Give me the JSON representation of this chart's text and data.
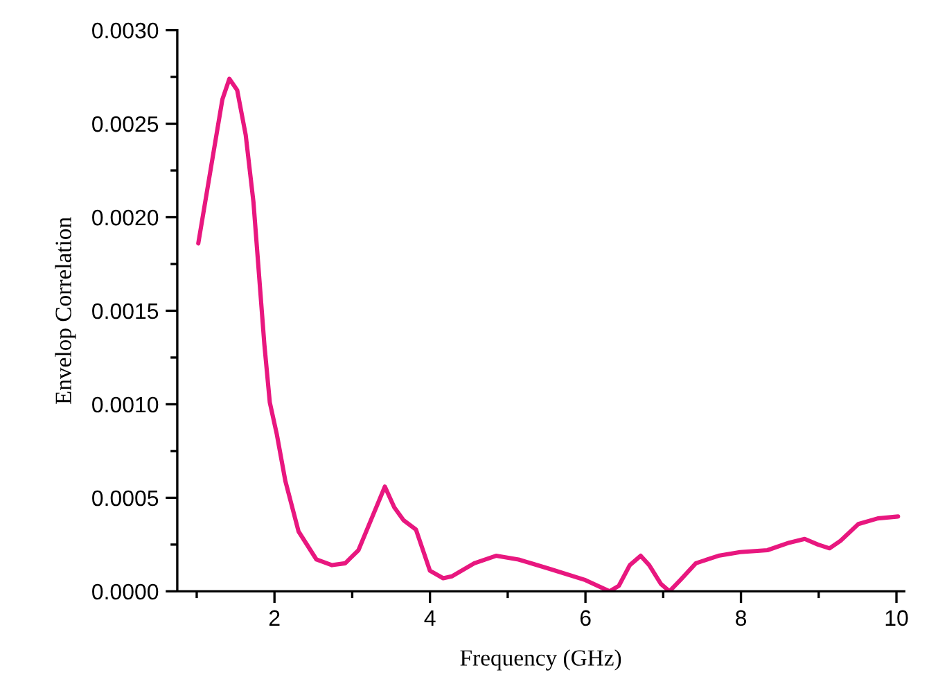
{
  "chart_data": {
    "type": "line",
    "xlabel": "Frequency (GHz)",
    "ylabel": "Envelop Correlation",
    "xlim": [
      0.75,
      10.1
    ],
    "ylim": [
      0,
      0.003
    ],
    "xticks": [
      2,
      4,
      6,
      8,
      10
    ],
    "yticks": [
      {
        "value": 0,
        "label": "0.0000"
      },
      {
        "value": 0.0005,
        "label": "0.0005"
      },
      {
        "value": 0.001,
        "label": "0.0010"
      },
      {
        "value": 0.0015,
        "label": "0.0015"
      },
      {
        "value": 0.002,
        "label": "0.0020"
      },
      {
        "value": 0.0025,
        "label": "0.0025"
      },
      {
        "value": 0.003,
        "label": "0.0030"
      }
    ],
    "grid": false,
    "marker": "none",
    "line_style": "solid",
    "series": [
      {
        "color": "#e8177f",
        "x": [
          1.02,
          1.33,
          1.42,
          1.52,
          1.63,
          1.73,
          1.87,
          1.94,
          2.03,
          2.14,
          2.31,
          2.54,
          2.74,
          2.91,
          3.08,
          3.26,
          3.42,
          3.54,
          3.66,
          3.82,
          4.0,
          4.17,
          4.28,
          4.57,
          4.85,
          5.14,
          5.54,
          6.0,
          6.31,
          6.43,
          6.57,
          6.71,
          6.82,
          6.97,
          7.08,
          7.22,
          7.42,
          7.71,
          7.99,
          8.34,
          8.62,
          8.82,
          8.99,
          9.14,
          9.28,
          9.51,
          9.76,
          10.02
        ],
        "values": [
          0.00186,
          0.00263,
          0.00274,
          0.00268,
          0.00244,
          0.00208,
          0.00132,
          0.00101,
          0.00084,
          0.00059,
          0.00032,
          0.00017,
          0.00014,
          0.00015,
          0.00022,
          0.0004,
          0.00056,
          0.00045,
          0.00038,
          0.00033,
          0.00011,
          7e-05,
          8e-05,
          0.00015,
          0.00019,
          0.00017,
          0.00012,
          6e-05,
          0.0,
          3e-05,
          0.00014,
          0.00019,
          0.00014,
          4e-05,
          0.0,
          6e-05,
          0.00015,
          0.00019,
          0.00021,
          0.00022,
          0.00026,
          0.00028,
          0.00025,
          0.00023,
          0.00027,
          0.00036,
          0.00039,
          0.0004
        ]
      }
    ]
  }
}
